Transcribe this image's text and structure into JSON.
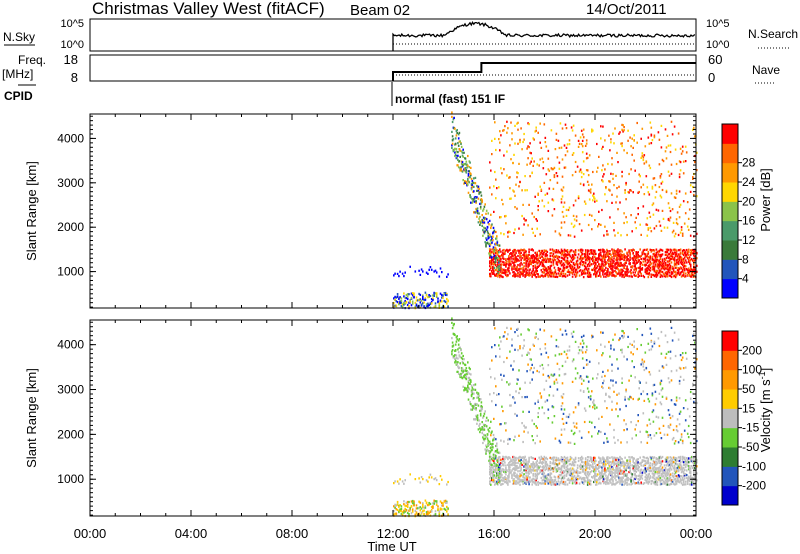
{
  "header": {
    "station_title": "Christmas Valley West (fitACF)",
    "beam": "Beam 02",
    "date": "14/Oct/2011"
  },
  "noise_panel": {
    "left_label": "N.Sky",
    "left_ticks": [
      "10^5",
      "10^0"
    ],
    "right_ticks": [
      "10^5",
      "10^0"
    ],
    "right_label": "N.Search"
  },
  "freq_panel": {
    "left_label_top": "Freq.",
    "left_label_bottom": "[MHz]",
    "left_ticks": [
      "18",
      "8"
    ],
    "right_ticks": [
      "60",
      "0"
    ],
    "right_label": "Nave"
  },
  "cpid": {
    "label": "CPID",
    "mode_text": "normal (fast) 151 IF"
  },
  "colors": {
    "power_scale": [
      "#0000ff",
      "#2255bb",
      "#3a7a3a",
      "#4a9a6a",
      "#8bc34a",
      "#ffd700",
      "#ff9900",
      "#ff6600",
      "#ff0000"
    ],
    "velocity_scale": [
      "#0000cc",
      "#2255bb",
      "#2e7d32",
      "#66cc33",
      "#bdbdbd",
      "#ffcc00",
      "#ff9900",
      "#ff6600",
      "#ff0000"
    ],
    "ground_scatter": "#c0c0c0"
  },
  "chart_data": [
    {
      "type": "heatmap",
      "name": "power",
      "ylabel": "Slant Range [km]",
      "y_ticks": [
        "1000",
        "2000",
        "3000",
        "4000"
      ],
      "ylim": [
        180,
        4550
      ],
      "xlim": [
        "00:00",
        "24:00"
      ],
      "colorbar_label": "Power [dB]",
      "colorbar_ticks": [
        "4",
        "8",
        "12",
        "16",
        "20",
        "24",
        "28"
      ],
      "data_start": "12:00",
      "data_end": "24:00"
    },
    {
      "type": "heatmap",
      "name": "velocity",
      "ylabel": "Slant Range [km]",
      "y_ticks": [
        "1000",
        "2000",
        "3000",
        "4000"
      ],
      "ylim": [
        180,
        4550
      ],
      "xlim": [
        "00:00",
        "24:00"
      ],
      "colorbar_label": "Velocity [m s-1]",
      "colorbar_ticks": [
        "200",
        "100",
        "50",
        "15",
        "-15",
        "-50",
        "-100",
        "-200"
      ],
      "data_start": "12:00",
      "data_end": "24:00"
    }
  ],
  "time_axis": {
    "label": "Time UT",
    "ticks": [
      "00:00",
      "04:00",
      "08:00",
      "12:00",
      "16:00",
      "20:00",
      "00:00"
    ]
  }
}
